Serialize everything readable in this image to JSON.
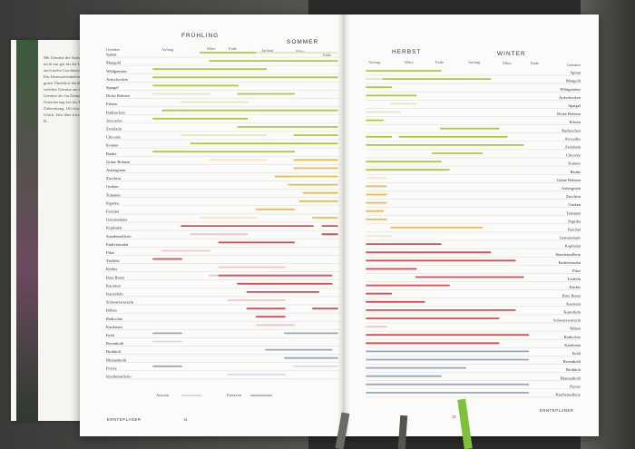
{
  "left_page": {
    "seasons": [
      "FRÜHLING",
      "SOMMER"
    ],
    "months": [
      "Anfang",
      "Mitte",
      "Ende",
      "Anfang",
      "Mitte",
      "Ende"
    ],
    "column_label": "Gemüse",
    "legend": {
      "aussaat": "Aussaat",
      "ernte": "Erntezeit"
    },
    "footer_left": "ERNTEPLANER",
    "page_number": "14"
  },
  "right_page": {
    "seasons": [
      "HERBST",
      "WINTER"
    ],
    "months": [
      "Anfang",
      "Mitte",
      "Ende",
      "Anfang",
      "Mitte",
      "Ende"
    ],
    "column_label": "Gemüse",
    "footer_right": "ERNTEPLANER",
    "page_number": "15"
  },
  "vegetables": [
    "Spinat",
    "Mangold",
    "Wildgemüse",
    "Artischocken",
    "Spargel",
    "Dicke Bohnen",
    "Erbsen",
    "Radieschen",
    "Avocados",
    "Zwiebeln",
    "Chicorée",
    "Kräuter",
    "Rauke",
    "Grüne Bohnen",
    "Auberginen",
    "Zucchini",
    "Gurken",
    "Tomaten",
    "Paprika",
    "Fenchel",
    "Gemüsemais",
    "Kopfsalat",
    "Staudensellerie",
    "Endiviensalat",
    "Pilze",
    "Trüffeln",
    "Kürbis",
    "Rote Beten",
    "Karotten",
    "Kartoffeln",
    "Schwarzwurzeln",
    "Rüben",
    "Radicchio",
    "Kardonen",
    "Kohl",
    "Rosenkohl",
    "Brokkoli",
    "Blumenkohl",
    "Porree",
    "Knollensellerie"
  ],
  "back_page_text": "Mit Gemüse der Saison zu kochen, ist nicht nur gut für die Umwelt, es bringt auch mehr Geschmack auf den Teller. Ein Jahreszeitenkalender gibt einen guten Überblick darüber, wann welches Gemüse am besten schmeckt. Gemüse als ein Datum, das bietet Orientierung bei der Planung und Zubereitung. Oft frisch vom Feld zum Glück, Jahr über frisch kochen. Ein B...",
  "colors": {
    "green": "#a8cc3c",
    "yellow": "#f2b84b",
    "orange": "#f4a94a",
    "red": "#de4a4f",
    "blue": "#9aa7bd",
    "faint_green": "#dfeab9",
    "faint_yellow": "#fbe6bf",
    "faint_red": "#f3c5c7",
    "faint_blue": "#d6dbe5",
    "accent_edge": "#7fb33a"
  }
}
